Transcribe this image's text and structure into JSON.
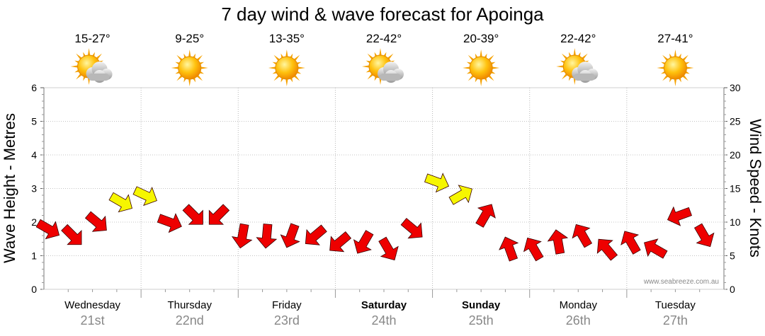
{
  "chart_data": {
    "type": "line",
    "title": "7 day wind & wave forecast for Apoinga",
    "ylabel_left": "Wave Height - Metres",
    "ylabel_right": "Wind Speed - Knots",
    "ylim_left": [
      0,
      6
    ],
    "ylim_right": [
      0,
      30
    ],
    "yticks_left": [
      "0",
      "1",
      "2",
      "3",
      "4",
      "5",
      "6"
    ],
    "yticks_right": [
      "0",
      "5",
      "10",
      "15",
      "20",
      "25",
      "30"
    ],
    "credit": "www.seabreeze.com.au",
    "days": [
      {
        "name": "Wednesday",
        "date": "21st",
        "temp": "15-27°",
        "weather": "partly-cloudy",
        "bold": false
      },
      {
        "name": "Thursday",
        "date": "22nd",
        "temp": "9-25°",
        "weather": "sunny",
        "bold": false
      },
      {
        "name": "Friday",
        "date": "23rd",
        "temp": "13-35°",
        "weather": "sunny",
        "bold": false
      },
      {
        "name": "Saturday",
        "date": "24th",
        "temp": "22-42°",
        "weather": "partly-cloudy",
        "bold": true
      },
      {
        "name": "Sunday",
        "date": "25th",
        "temp": "20-39°",
        "weather": "sunny",
        "bold": true
      },
      {
        "name": "Monday",
        "date": "26th",
        "temp": "22-42°",
        "weather": "partly-cloudy",
        "bold": false
      },
      {
        "name": "Tuesday",
        "date": "27th",
        "temp": "27-41°",
        "weather": "sunny",
        "bold": false
      }
    ],
    "wind_series": {
      "name": "Wind speed (knots) with direction",
      "x_days": [
        0.0,
        0.25,
        0.5,
        0.75,
        1.0,
        1.25,
        1.5,
        1.75,
        2.0,
        2.25,
        2.5,
        2.75,
        3.0,
        3.25,
        3.5,
        3.75,
        4.0,
        4.25,
        4.5,
        4.75,
        5.0,
        5.25,
        5.5,
        5.75,
        6.0,
        6.25,
        6.5,
        6.75
      ],
      "knots": [
        9,
        8,
        10,
        13,
        14,
        10,
        11,
        11,
        8,
        8,
        8,
        8,
        7,
        7,
        6,
        9,
        16,
        14,
        11,
        6,
        6,
        7,
        8,
        6,
        7,
        6,
        11,
        8
      ],
      "direction_deg": [
        30,
        45,
        40,
        30,
        25,
        20,
        45,
        135,
        100,
        95,
        110,
        140,
        140,
        120,
        60,
        40,
        20,
        330,
        300,
        250,
        240,
        260,
        240,
        230,
        240,
        210,
        160,
        60
      ],
      "color_rule": "yellow at or above 12 knots, red below"
    }
  }
}
